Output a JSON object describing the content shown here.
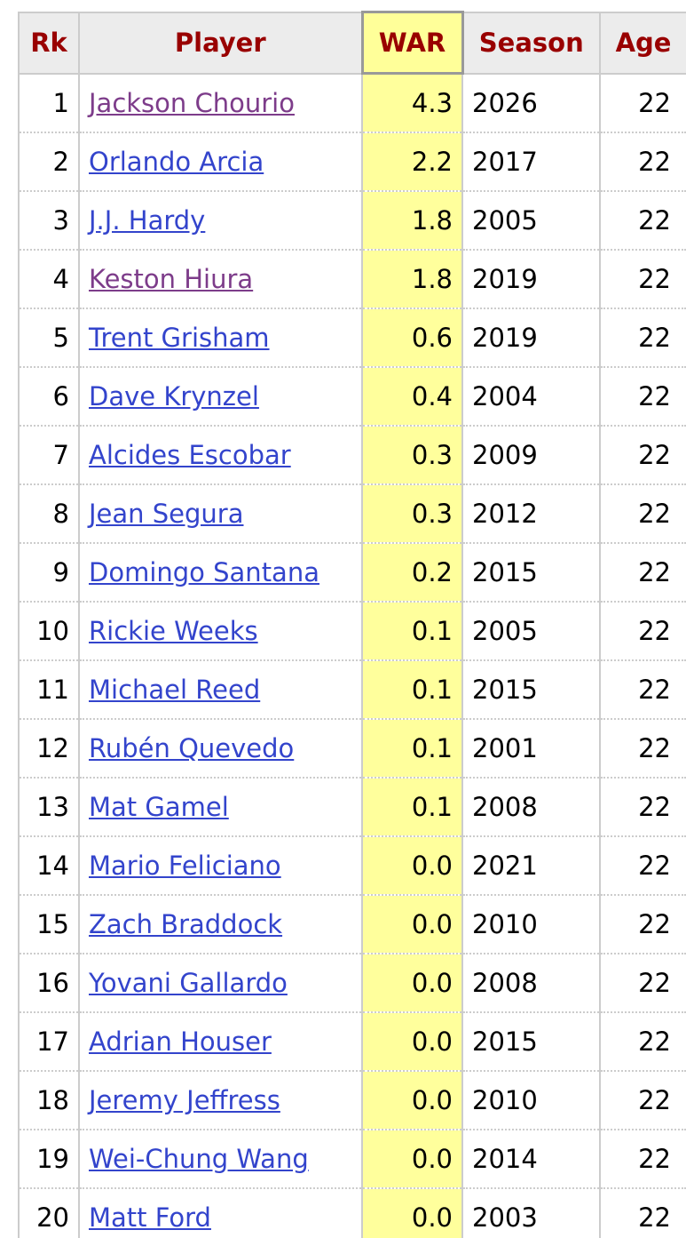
{
  "table": {
    "header": [
      "Rk",
      "Player",
      "WAR",
      "Season",
      "Age"
    ],
    "rows": [
      [
        "1",
        "Jackson Chourio",
        "4.3",
        "2026",
        "22"
      ],
      [
        "2",
        "Orlando Arcia",
        "2.2",
        "2017",
        "22"
      ],
      [
        "3",
        "J.J. Hardy",
        "1.8",
        "2005",
        "22"
      ],
      [
        "4",
        "Keston Hiura",
        "1.8",
        "2019",
        "22"
      ],
      [
        "5",
        "Trent Grisham",
        "0.6",
        "2019",
        "22"
      ],
      [
        "6",
        "Dave Krynzel",
        "0.4",
        "2004",
        "22"
      ],
      [
        "7",
        "Alcides Escobar",
        "0.3",
        "2009",
        "22"
      ],
      [
        "8",
        "Jean Segura",
        "0.3",
        "2012",
        "22"
      ],
      [
        "9",
        "Domingo Santana",
        "0.2",
        "2015",
        "22"
      ],
      [
        "10",
        "Rickie Weeks",
        "0.1",
        "2005",
        "22"
      ],
      [
        "11",
        "Michael Reed",
        "0.1",
        "2015",
        "22"
      ],
      [
        "12",
        "Rubén Quevedo",
        "0.1",
        "2001",
        "22"
      ],
      [
        "13",
        "Mat Gamel",
        "0.1",
        "2008",
        "22"
      ],
      [
        "14",
        "Mario Feliciano",
        "0.0",
        "2021",
        "22"
      ],
      [
        "15",
        "Zach Braddock",
        "0.0",
        "2010",
        "22"
      ],
      [
        "16",
        "Yovani Gallardo",
        "0.0",
        "2008",
        "22"
      ],
      [
        "17",
        "Adrian Houser",
        "0.0",
        "2015",
        "22"
      ],
      [
        "18",
        "Jeremy Jeffress",
        "0.0",
        "2010",
        "22"
      ],
      [
        "19",
        "Wei-Chung Wang",
        "0.0",
        "2014",
        "22"
      ],
      [
        "20",
        "Matt Ford",
        "0.0",
        "2003",
        "22"
      ]
    ]
  }
}
